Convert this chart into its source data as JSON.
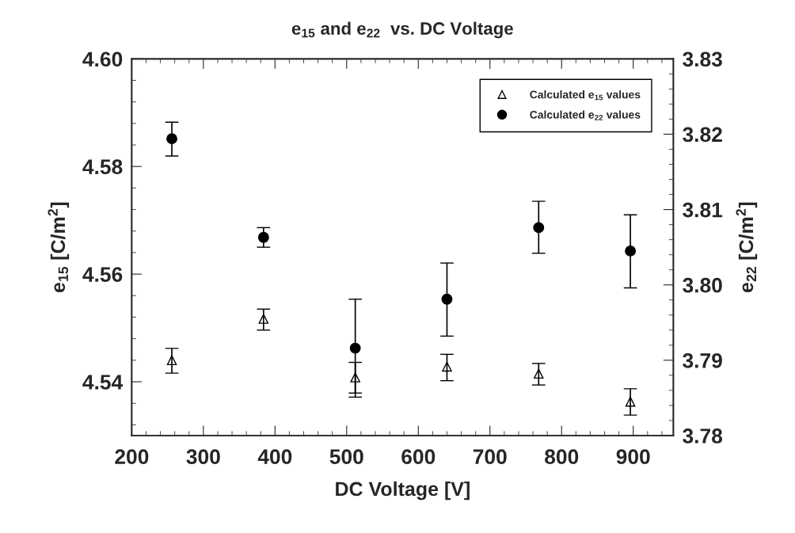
{
  "chart_data": {
    "type": "scatter",
    "title": "e$_{15}$ and e$_{22}$  vs. DC Voltage",
    "xlabel": "DC Voltage [V]",
    "ylabel": "e$_{15}$ [C/m$^{2}$]",
    "y2label": "e$_{22}$ [C/m$^{2}$]",
    "x": [
      256,
      384,
      512,
      640,
      768,
      896
    ],
    "xlim": [
      200,
      956
    ],
    "xticks": [
      200,
      300,
      400,
      500,
      600,
      700,
      800,
      900
    ],
    "ylim": [
      4.53,
      4.6
    ],
    "yticks": [
      4.54,
      4.56,
      4.58,
      {
        "value": 4.6,
        "label": "4.60"
      }
    ],
    "y2lim": [
      3.78,
      3.83
    ],
    "y2ticks": [
      3.78,
      3.79,
      {
        "value": 3.8,
        "label": "3.80"
      },
      3.81,
      3.82,
      3.83
    ],
    "grid": false,
    "legend": "top right",
    "series": [
      {
        "name": "Calculated e$_{15}$ values",
        "color": "#000000",
        "marker": "triangle",
        "values": [
          4.544,
          4.5517,
          4.5408,
          4.5428,
          4.5415,
          4.5363
        ],
        "errors": [
          [
            4.5416,
            4.5462
          ],
          [
            4.5496,
            4.5535
          ],
          [
            4.5379,
            4.5436
          ],
          [
            4.5402,
            4.5451
          ],
          [
            4.5394,
            4.5434
          ],
          [
            4.5338,
            4.5387
          ]
        ]
      },
      {
        "name": "Calculated e$_{22}$ values",
        "color": "#000000",
        "marker": "circle",
        "axis": "y2",
        "values": [
          3.8194,
          3.8063,
          3.7916,
          3.7981,
          3.8076,
          3.8045
        ],
        "errors": [
          [
            3.8171,
            3.8216
          ],
          [
            3.805,
            3.8076
          ],
          [
            3.7851,
            3.7981
          ],
          [
            3.7932,
            3.8029
          ],
          [
            3.8042,
            3.8111
          ],
          [
            3.7996,
            3.8093
          ]
        ]
      }
    ]
  }
}
